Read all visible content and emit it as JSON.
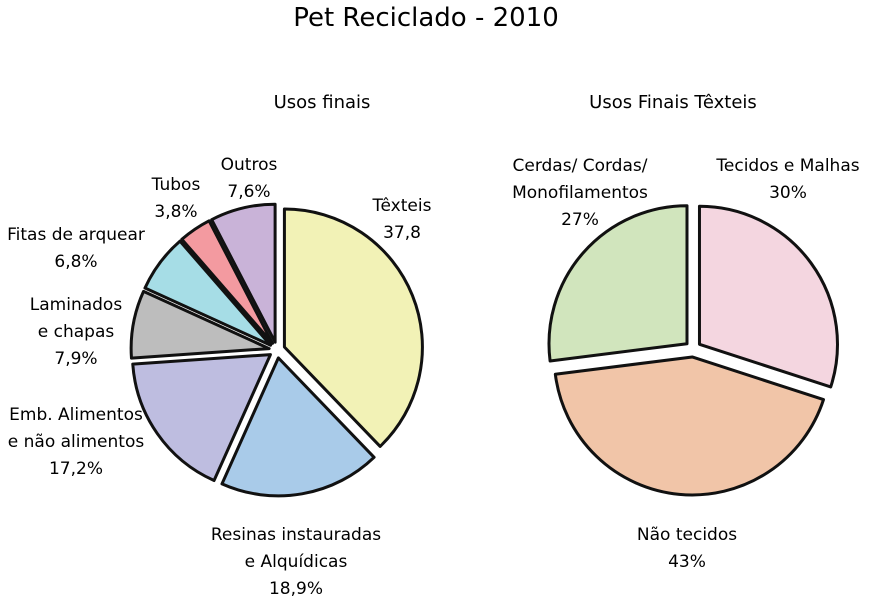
{
  "title": "Pet Reciclado - 2010",
  "chart_data": [
    {
      "type": "pie",
      "title": "Usos finais",
      "slices": [
        {
          "name": "Têxteis",
          "value": 37.8,
          "value_label": "37,8",
          "color": "#f2f2b6"
        },
        {
          "name": "Resinas instauradas e Alquídicas",
          "value": 18.9,
          "value_label": "18,9%",
          "color": "#a9cbe9"
        },
        {
          "name": "Emb. Alimentos e não alimentos",
          "value": 17.2,
          "value_label": "17,2%",
          "color": "#bebde0"
        },
        {
          "name": "Laminados e chapas",
          "value": 7.9,
          "value_label": "7,9%",
          "color": "#bdbdbd"
        },
        {
          "name": "Fitas de arquear",
          "value": 6.8,
          "value_label": "6,8%",
          "color": "#a6dde6"
        },
        {
          "name": "Tubos",
          "value": 3.8,
          "value_label": "3,8%",
          "color": "#f39aa0"
        },
        {
          "name": "Outros",
          "value": 7.6,
          "value_label": "7,6%",
          "color": "#c9b3d8"
        }
      ]
    },
    {
      "type": "pie",
      "title": "Usos Finais Têxteis",
      "slices": [
        {
          "name": "Tecidos e Malhas",
          "value": 30,
          "value_label": "30%",
          "color": "#f4d6e0"
        },
        {
          "name": "Não tecidos",
          "value": 43,
          "value_label": "43%",
          "color": "#f1c5a8"
        },
        {
          "name": "Cerdas/ Cordas/ Monofilamentos",
          "value": 27,
          "value_label": "27%",
          "color": "#d1e5bd"
        }
      ]
    }
  ],
  "labels": {
    "left": [
      {
        "lines": [
          "Têxteis",
          "37,8"
        ]
      },
      {
        "lines": [
          "Resinas instauradas",
          "e Alquídicas",
          "18,9%"
        ]
      },
      {
        "lines": [
          "Emb. Alimentos",
          "e não alimentos",
          "17,2%"
        ]
      },
      {
        "lines": [
          "Laminados",
          "e chapas",
          "7,9%"
        ]
      },
      {
        "lines": [
          "Fitas de arquear",
          "6,8%"
        ]
      },
      {
        "lines": [
          "Tubos",
          "3,8%"
        ]
      },
      {
        "lines": [
          "Outros",
          "7,6%"
        ]
      }
    ],
    "right": [
      {
        "lines": [
          "Tecidos e Malhas",
          "30%"
        ]
      },
      {
        "lines": [
          "Não tecidos",
          "43%"
        ]
      },
      {
        "lines": [
          "Cerdas/ Cordas/",
          "Monofilamentos",
          "27%"
        ]
      }
    ]
  }
}
